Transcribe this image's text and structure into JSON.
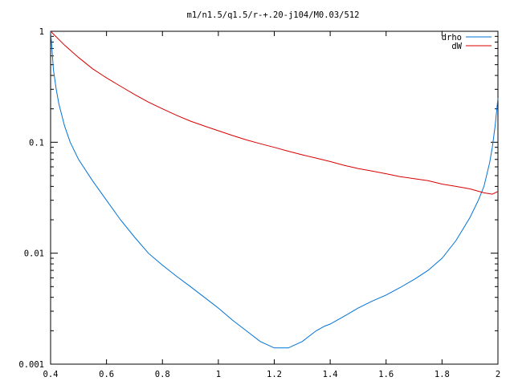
{
  "chart_data": {
    "type": "line",
    "title": "m1/n1.5/q1.5/r-+.20-j104/M0.03/512",
    "xlabel": "",
    "ylabel": "",
    "xlim": [
      0.4,
      2.0
    ],
    "ylim": [
      0.001,
      1
    ],
    "yscale": "log",
    "grid": false,
    "legend": "top-right",
    "x_ticks": [
      "0.4",
      "0.6",
      "0.8",
      "1",
      "1.2",
      "1.4",
      "1.6",
      "1.8",
      "2"
    ],
    "x_tick_values": [
      0.4,
      0.6,
      0.8,
      1.0,
      1.2,
      1.4,
      1.6,
      1.8,
      2.0
    ],
    "y_ticks": [
      "1",
      "0.1",
      "0.01",
      "0.001"
    ],
    "y_tick_values": [
      1,
      0.1,
      0.01,
      0.001
    ],
    "series": [
      {
        "name": "drho",
        "color": "#0072d8",
        "x": [
          0.4,
          0.405,
          0.41,
          0.42,
          0.43,
          0.45,
          0.47,
          0.5,
          0.55,
          0.6,
          0.65,
          0.7,
          0.75,
          0.8,
          0.85,
          0.9,
          0.95,
          1.0,
          1.05,
          1.1,
          1.15,
          1.2,
          1.25,
          1.3,
          1.35,
          1.38,
          1.4,
          1.45,
          1.5,
          1.55,
          1.6,
          1.65,
          1.7,
          1.75,
          1.8,
          1.85,
          1.9,
          1.93,
          1.95,
          1.97,
          1.98,
          1.99,
          2.0
        ],
        "values": [
          1.0,
          0.7,
          0.45,
          0.3,
          0.22,
          0.14,
          0.1,
          0.07,
          0.045,
          0.03,
          0.02,
          0.014,
          0.01,
          0.0078,
          0.0062,
          0.005,
          0.004,
          0.0032,
          0.0025,
          0.002,
          0.0016,
          0.0014,
          0.0014,
          0.0016,
          0.002,
          0.0022,
          0.0023,
          0.0027,
          0.0032,
          0.0037,
          0.0042,
          0.0049,
          0.0058,
          0.007,
          0.009,
          0.013,
          0.021,
          0.03,
          0.04,
          0.065,
          0.09,
          0.14,
          0.25
        ]
      },
      {
        "name": "dW",
        "color": "#d80000",
        "x": [
          0.4,
          0.45,
          0.5,
          0.55,
          0.6,
          0.65,
          0.7,
          0.75,
          0.8,
          0.85,
          0.9,
          0.95,
          1.0,
          1.05,
          1.1,
          1.15,
          1.2,
          1.25,
          1.3,
          1.35,
          1.4,
          1.45,
          1.5,
          1.55,
          1.6,
          1.65,
          1.7,
          1.75,
          1.8,
          1.85,
          1.9,
          1.95,
          1.98,
          2.0
        ],
        "values": [
          1.0,
          0.75,
          0.58,
          0.46,
          0.38,
          0.32,
          0.27,
          0.23,
          0.2,
          0.175,
          0.155,
          0.14,
          0.127,
          0.115,
          0.105,
          0.097,
          0.09,
          0.083,
          0.077,
          0.072,
          0.067,
          0.062,
          0.058,
          0.055,
          0.052,
          0.049,
          0.047,
          0.045,
          0.042,
          0.04,
          0.038,
          0.035,
          0.034,
          0.036
        ]
      }
    ]
  }
}
